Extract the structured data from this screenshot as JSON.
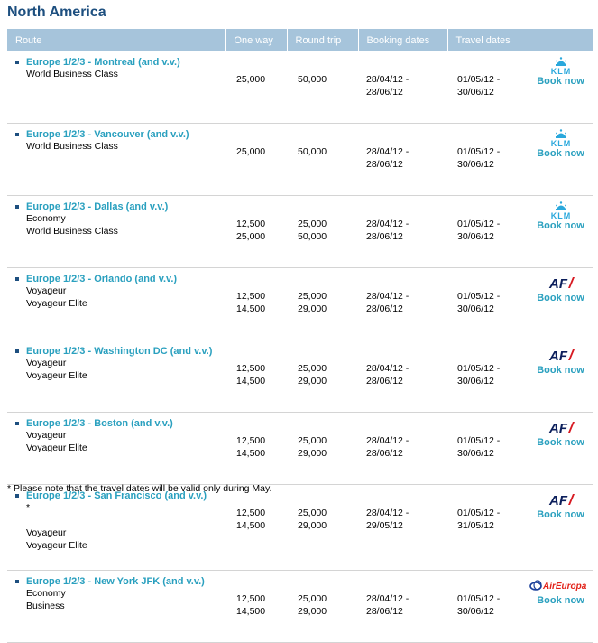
{
  "page": {
    "title": "North America"
  },
  "table": {
    "headers": {
      "route": "Route",
      "one_way": "One way",
      "round_trip": "Round trip",
      "booking": "Booking dates",
      "travel": "Travel dates",
      "airline": ""
    },
    "book_label": "Book now",
    "rows": [
      {
        "route": "Europe 1/2/3 - Montreal (and v.v.)",
        "airline": "KLM",
        "classes": [
          "World Business Class"
        ],
        "one_way": [
          "25,000"
        ],
        "round_trip": [
          "50,000"
        ],
        "booking": [
          "28/04/12 -",
          "28/06/12"
        ],
        "travel": [
          "01/05/12 -",
          "30/06/12"
        ]
      },
      {
        "route": "Europe 1/2/3 - Vancouver (and v.v.)",
        "airline": "KLM",
        "classes": [
          "World Business Class"
        ],
        "one_way": [
          "25,000"
        ],
        "round_trip": [
          "50,000"
        ],
        "booking": [
          "28/04/12 -",
          "28/06/12"
        ],
        "travel": [
          "01/05/12 -",
          "30/06/12"
        ]
      },
      {
        "route": "Europe 1/2/3 - Dallas (and v.v.)",
        "airline": "KLM",
        "classes": [
          "Economy",
          "World Business Class"
        ],
        "one_way": [
          "12,500",
          "25,000"
        ],
        "round_trip": [
          "25,000",
          "50,000"
        ],
        "booking": [
          "28/04/12 -",
          "28/06/12"
        ],
        "travel": [
          "01/05/12 -",
          "30/06/12"
        ]
      },
      {
        "route": "Europe 1/2/3 - Orlando (and v.v.)",
        "airline": "AF",
        "classes": [
          "Voyageur",
          "Voyageur Elite"
        ],
        "one_way": [
          "12,500",
          "14,500"
        ],
        "round_trip": [
          "25,000",
          "29,000"
        ],
        "booking": [
          "28/04/12 -",
          "28/06/12"
        ],
        "travel": [
          "01/05/12 -",
          "30/06/12"
        ]
      },
      {
        "route": "Europe 1/2/3 - Washington DC (and v.v.)",
        "airline": "AF",
        "classes": [
          "Voyageur",
          "Voyageur Elite"
        ],
        "one_way": [
          "12,500",
          "14,500"
        ],
        "round_trip": [
          "25,000",
          "29,000"
        ],
        "booking": [
          "28/04/12 -",
          "28/06/12"
        ],
        "travel": [
          "01/05/12 -",
          "30/06/12"
        ]
      },
      {
        "route": "Europe 1/2/3 - Boston (and v.v.)",
        "airline": "AF",
        "classes": [
          "Voyageur",
          "Voyageur Elite"
        ],
        "one_way": [
          "12,500",
          "14,500"
        ],
        "round_trip": [
          "25,000",
          "29,000"
        ],
        "booking": [
          "28/04/12 -",
          "28/06/12"
        ],
        "travel": [
          "01/05/12 -",
          "30/06/12"
        ]
      },
      {
        "route": "Europe 1/2/3 - San Francisco (and v.v.)",
        "airline": "AF",
        "footnote": "*",
        "classes": [
          "Voyageur",
          "Voyageur Elite"
        ],
        "one_way": [
          "12,500",
          "14,500"
        ],
        "round_trip": [
          "25,000",
          "29,000"
        ],
        "booking": [
          "28/04/12 -",
          "29/05/12"
        ],
        "travel": [
          "01/05/12 -",
          "31/05/12"
        ]
      },
      {
        "route": "Europe 1/2/3 - New York JFK (and v.v.)",
        "airline": "AirEuropa",
        "classes": [
          "Economy",
          "Business"
        ],
        "one_way": [
          "12,500",
          "14,500"
        ],
        "round_trip": [
          "25,000",
          "29,000"
        ],
        "booking": [
          "28/04/12 -",
          "28/06/12"
        ],
        "travel": [
          "01/05/12 -",
          "30/06/12"
        ]
      }
    ]
  },
  "logos": {
    "klm": "KLM",
    "airfrance": "AF",
    "aireuropa": "AirEuropa"
  },
  "colors": {
    "header_bg": "#a6c4db",
    "link": "#2aa0bf",
    "title": "#1d4f7f",
    "klm": "#2aa8dc",
    "af_red": "#d71921",
    "af_navy": "#0b1e5b",
    "aireuropa_blue": "#1a3f9a",
    "aireuropa_red": "#e2231a"
  },
  "footnote": "* Please note that the travel dates will be valid only during May."
}
